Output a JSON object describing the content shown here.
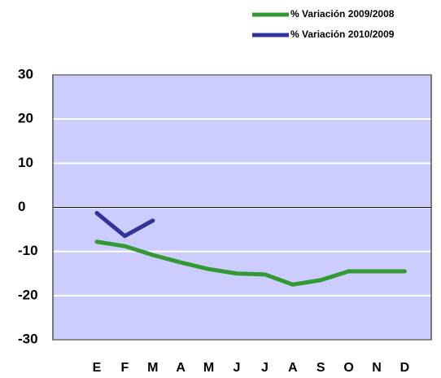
{
  "chart_data": {
    "type": "line",
    "categories": [
      "E",
      "F",
      "M",
      "A",
      "M",
      "J",
      "J",
      "A",
      "S",
      "O",
      "N",
      "D"
    ],
    "series": [
      {
        "name": "% Variación 2009/2008",
        "color": "#339933",
        "values": [
          -7.8,
          -8.8,
          -10.8,
          -12.5,
          -14,
          -15,
          -15.2,
          -17.5,
          -16.5,
          -14.5,
          -14.5,
          -14.5
        ]
      },
      {
        "name": "% Variación 2010/2009",
        "color": "#333399",
        "values": [
          -1.3,
          -6.5,
          -3,
          null,
          null,
          null,
          null,
          null,
          null,
          null,
          null,
          null
        ]
      }
    ],
    "ylim": [
      -30,
      30
    ],
    "yticks": [
      -30,
      -20,
      -10,
      0,
      10,
      20,
      30
    ],
    "grid": true
  }
}
